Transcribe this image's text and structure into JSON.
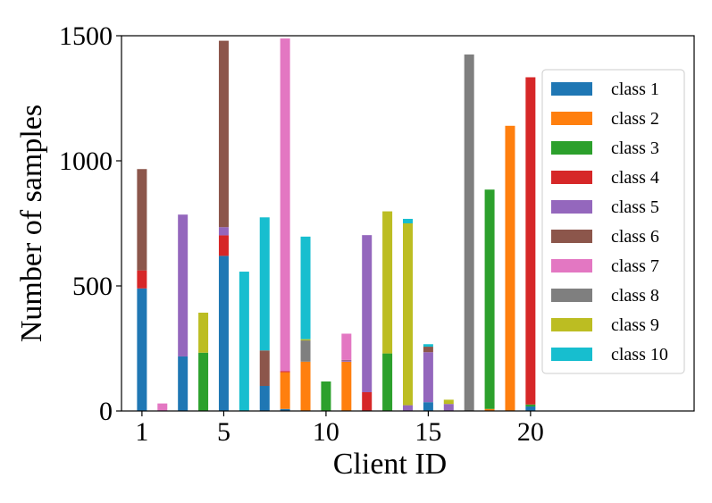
{
  "chart_data": {
    "type": "bar",
    "stacked": true,
    "xlabel": "Client ID",
    "ylabel": "Number of samples",
    "xlim": [
      0,
      28
    ],
    "ylim": [
      0,
      1500
    ],
    "xticks": [
      1,
      5,
      10,
      15,
      20
    ],
    "yticks": [
      0,
      500,
      1000,
      1500
    ],
    "grid": false,
    "legend_position": "right",
    "categories": [
      1,
      2,
      3,
      4,
      5,
      6,
      7,
      8,
      9,
      10,
      11,
      12,
      13,
      14,
      15,
      16,
      17,
      18,
      19,
      20
    ],
    "series": [
      {
        "name": "class 1",
        "color": "#1f77b4",
        "values": [
          490,
          0,
          218,
          0,
          620,
          0,
          100,
          8,
          0,
          0,
          0,
          0,
          0,
          0,
          35,
          0,
          0,
          0,
          0,
          18
        ]
      },
      {
        "name": "class 2",
        "color": "#ff7f0e",
        "values": [
          0,
          0,
          0,
          0,
          0,
          0,
          0,
          147,
          197,
          0,
          197,
          0,
          0,
          0,
          0,
          0,
          0,
          8,
          1140,
          0
        ]
      },
      {
        "name": "class 3",
        "color": "#2ca02c",
        "values": [
          0,
          0,
          0,
          233,
          0,
          0,
          0,
          0,
          0,
          118,
          0,
          0,
          230,
          0,
          0,
          0,
          0,
          877,
          0,
          8
        ]
      },
      {
        "name": "class 4",
        "color": "#d62728",
        "values": [
          72,
          0,
          0,
          0,
          82,
          0,
          0,
          4,
          0,
          0,
          0,
          75,
          0,
          0,
          0,
          0,
          0,
          0,
          0,
          1308
        ]
      },
      {
        "name": "class 5",
        "color": "#9467bd",
        "values": [
          0,
          0,
          567,
          0,
          33,
          0,
          0,
          0,
          0,
          0,
          5,
          628,
          0,
          23,
          200,
          28,
          0,
          0,
          0,
          0
        ]
      },
      {
        "name": "class 6",
        "color": "#8c564b",
        "values": [
          405,
          0,
          0,
          0,
          745,
          0,
          142,
          0,
          0,
          0,
          2,
          0,
          0,
          0,
          22,
          0,
          0,
          0,
          0,
          0
        ]
      },
      {
        "name": "class 7",
        "color": "#e377c2",
        "values": [
          0,
          30,
          0,
          0,
          0,
          0,
          0,
          1330,
          0,
          0,
          105,
          0,
          0,
          0,
          0,
          0,
          0,
          0,
          0,
          0
        ]
      },
      {
        "name": "class 8",
        "color": "#7f7f7f",
        "values": [
          0,
          0,
          0,
          0,
          0,
          0,
          0,
          0,
          85,
          0,
          0,
          0,
          0,
          0,
          0,
          0,
          1425,
          0,
          0,
          0
        ]
      },
      {
        "name": "class 9",
        "color": "#bcbd22",
        "values": [
          0,
          0,
          0,
          160,
          0,
          0,
          0,
          0,
          5,
          0,
          0,
          0,
          568,
          727,
          0,
          17,
          0,
          0,
          0,
          0
        ]
      },
      {
        "name": "class 10",
        "color": "#17becf",
        "values": [
          0,
          0,
          0,
          0,
          0,
          557,
          532,
          0,
          410,
          0,
          0,
          0,
          0,
          18,
          10,
          0,
          0,
          0,
          0,
          0
        ]
      }
    ]
  }
}
